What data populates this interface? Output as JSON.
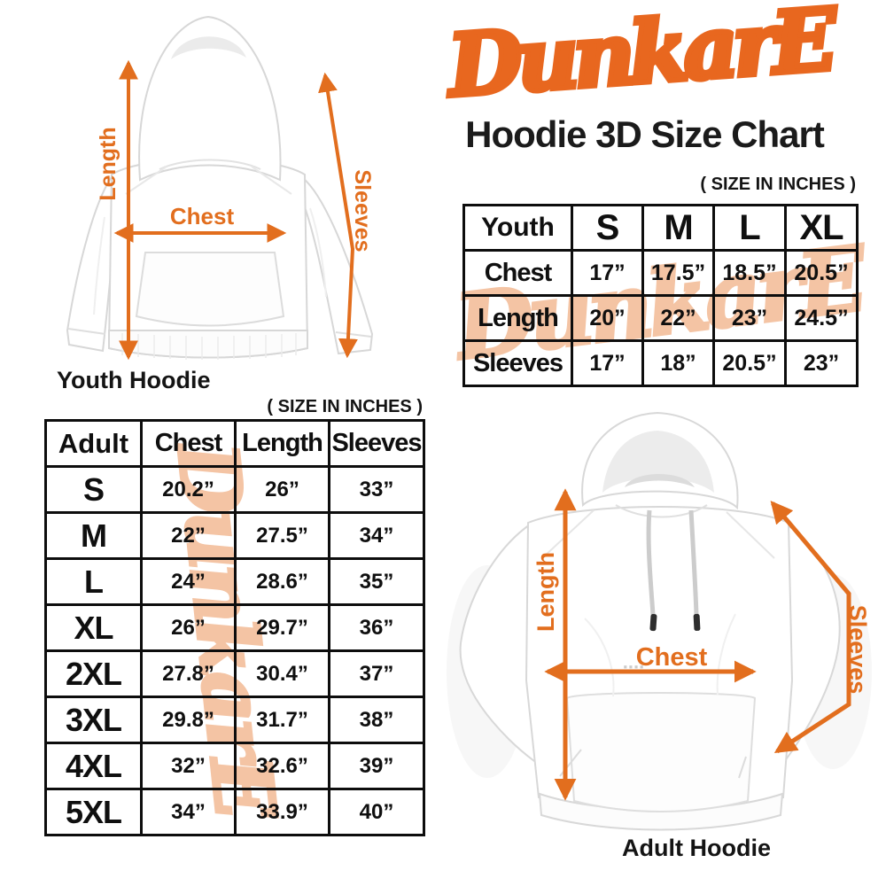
{
  "brand": {
    "name": "DunkarE",
    "color": "#E8671F"
  },
  "title": "Hoodie 3D Size Chart",
  "watermark": {
    "text": "DunkarE",
    "color": "#F4C4A4"
  },
  "youth": {
    "size_note": "( SIZE IN INCHES )",
    "caption": "Youth Hoodie",
    "labels": {
      "length": "Length",
      "chest": "Chest",
      "sleeves": "Sleeves"
    },
    "table": {
      "header": [
        "Youth",
        "S",
        "M",
        "L",
        "XL"
      ],
      "rows": [
        {
          "label": "Chest",
          "values": [
            "17”",
            "17.5”",
            "18.5”",
            "20.5”"
          ]
        },
        {
          "label": "Length",
          "values": [
            "20”",
            "22”",
            "23”",
            "24.5”"
          ]
        },
        {
          "label": "Sleeves",
          "values": [
            "17”",
            "18”",
            "20.5”",
            "23”"
          ]
        }
      ]
    }
  },
  "adult": {
    "size_note": "( SIZE IN INCHES )",
    "caption": "Adult Hoodie",
    "labels": {
      "length": "Length",
      "chest": "Chest",
      "sleeves": "Sleeves"
    },
    "chest_dots": "....",
    "table": {
      "header": [
        "Adult",
        "Chest",
        "Length",
        "Sleeves"
      ],
      "rows": [
        {
          "label": "S",
          "values": [
            "20.2”",
            "26”",
            "33”"
          ]
        },
        {
          "label": "M",
          "values": [
            "22”",
            "27.5”",
            "34”"
          ]
        },
        {
          "label": "L",
          "values": [
            "24”",
            "28.6”",
            "35”"
          ]
        },
        {
          "label": "XL",
          "values": [
            "26”",
            "29.7”",
            "36”"
          ]
        },
        {
          "label": "2XL",
          "values": [
            "27.8”",
            "30.4”",
            "37”"
          ]
        },
        {
          "label": "3XL",
          "values": [
            "29.8”",
            "31.7”",
            "38”"
          ]
        },
        {
          "label": "4XL",
          "values": [
            "32”",
            "32.6”",
            "39”"
          ]
        },
        {
          "label": "5XL",
          "values": [
            "34”",
            "33.9”",
            "40”"
          ]
        }
      ]
    }
  },
  "colors": {
    "arrow_orange": "#E26E1E",
    "table_border": "#0D0D0D",
    "text_black": "#111111"
  }
}
